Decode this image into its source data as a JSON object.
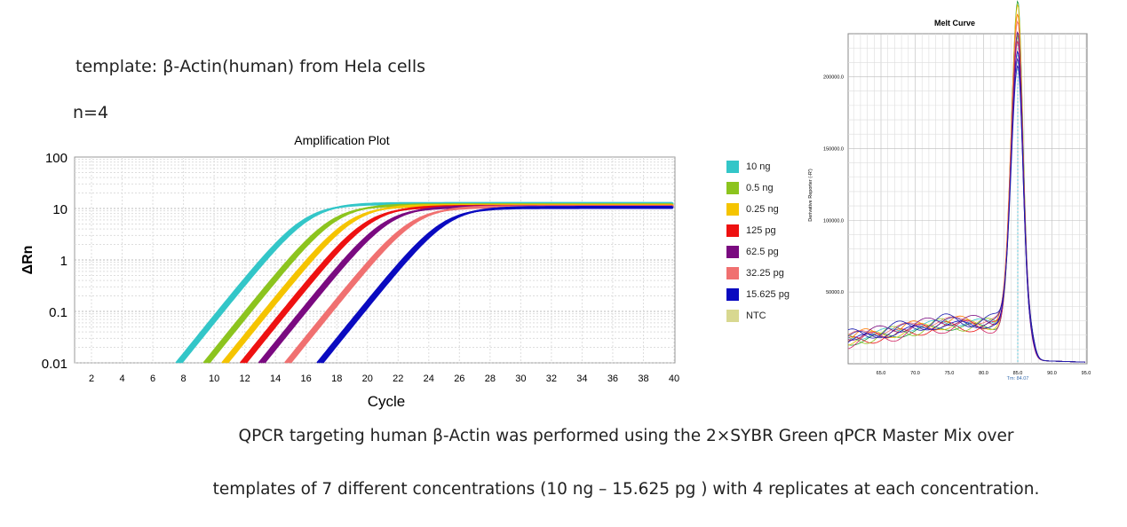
{
  "texts": {
    "template": "template: β-Actin(human) from Hela cells",
    "n": "n=4",
    "caption1": "QPCR targeting human β-Actin was performed using the 2×SYBR Green qPCR Master Mix over",
    "caption2": "templates of 7 different concentrations  (10 ng – 15.625 pg ) with 4 replicates at each concentration."
  },
  "chart_data": [
    {
      "type": "line",
      "title": "Amplification Plot",
      "xlabel": "Cycle",
      "ylabel": "ΔRn",
      "yscale": "log",
      "xlim": [
        1,
        40
      ],
      "ylim": [
        0.01,
        100
      ],
      "xticks": [
        "2",
        "4",
        "6",
        "8",
        "10",
        "12",
        "14",
        "16",
        "18",
        "20",
        "22",
        "24",
        "26",
        "28",
        "30",
        "32",
        "34",
        "36",
        "38",
        "40"
      ],
      "yticks": [
        "0.01",
        "0.1",
        "1",
        "10",
        "100"
      ],
      "grid": true,
      "legend_position": "right",
      "replicates": 4,
      "series": [
        {
          "name": "10 ng",
          "color": "#33c6c8",
          "cycle_at_0_01": 7.7,
          "plateau": 12.5
        },
        {
          "name": "0.5 ng",
          "color": "#8cc41e",
          "cycle_at_0_01": 9.5,
          "plateau": 11.8
        },
        {
          "name": "0.25 ng",
          "color": "#f5c400",
          "cycle_at_0_01": 10.7,
          "plateau": 11.5
        },
        {
          "name": "125 pg",
          "color": "#ee1111",
          "cycle_at_0_01": 11.9,
          "plateau": 11
        },
        {
          "name": "62.5 pg",
          "color": "#7a0a80",
          "cycle_at_0_01": 13.1,
          "plateau": 10.8
        },
        {
          "name": "32.25 pg",
          "color": "#f07070",
          "cycle_at_0_01": 14.8,
          "plateau": 10.8
        },
        {
          "name": "15.625 pg",
          "color": "#0a0ac0",
          "cycle_at_0_01": 16.9,
          "plateau": 10.5
        },
        {
          "name": "NTC",
          "color": "#d8d890",
          "cycle_at_0_01": null,
          "plateau": null
        }
      ]
    },
    {
      "type": "line",
      "title": "Melt Curve",
      "xlabel": "",
      "ylabel": "Derivative Reporter (-R')",
      "xlim": [
        60,
        95
      ],
      "ylim": [
        0,
        230000
      ],
      "xticks": [
        "65.0",
        "70.0",
        "75.0",
        "80.0",
        "85.0",
        "90.0",
        "95.0"
      ],
      "yticks": [
        "50000.0",
        "100000.0",
        "150000.0",
        "200000.0"
      ],
      "tm_label": "Tm: 84.07",
      "tm_marker": 85,
      "grid": true,
      "peak_values": [
        225000,
        220000,
        214000,
        210000,
        207000,
        205000,
        202000,
        198000,
        195000,
        190000,
        186000,
        182000
      ]
    }
  ]
}
